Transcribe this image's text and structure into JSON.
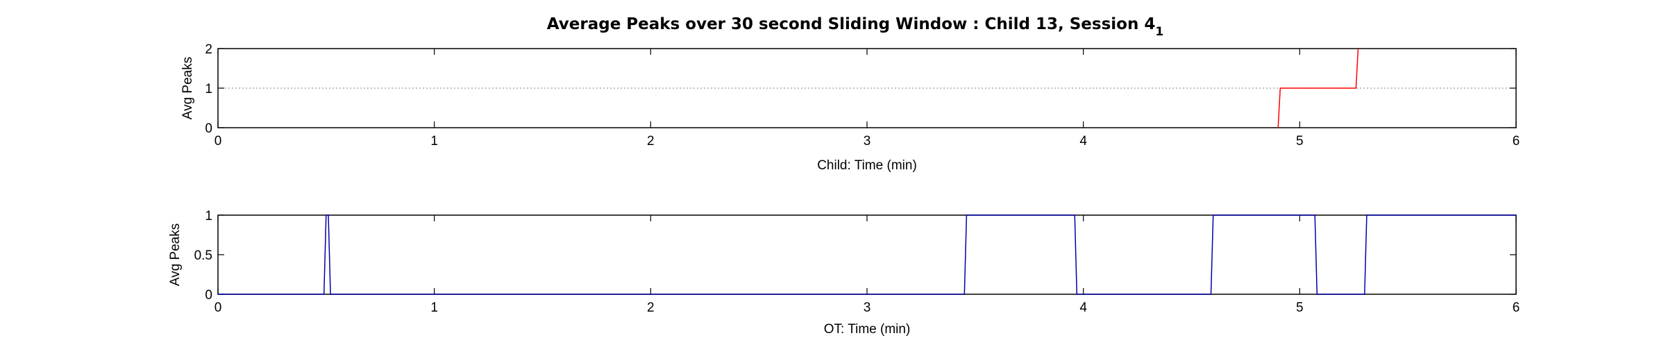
{
  "figure": {
    "title": "Average Peaks over 30 second Sliding Window : Child 13, Session 4",
    "title_subscript": "1"
  },
  "chart_data": [
    {
      "type": "line",
      "title": "",
      "xlabel": "Child: Time (min)",
      "ylabel": "Avg Peaks",
      "xlim": [
        0,
        6
      ],
      "ylim": [
        0,
        2
      ],
      "xticks": [
        0,
        1,
        2,
        3,
        4,
        5,
        6
      ],
      "yticks": [
        0,
        1,
        2
      ],
      "grid": false,
      "reference_line": 1,
      "series": [
        {
          "color": "#ff0000",
          "x": [
            4.9,
            4.91,
            5.26,
            5.27
          ],
          "y": [
            0,
            1,
            1,
            2
          ]
        }
      ]
    },
    {
      "type": "line",
      "title": "",
      "xlabel": "OT: Time (min)",
      "ylabel": "Avg Peaks",
      "xlim": [
        0,
        6
      ],
      "ylim": [
        0,
        1
      ],
      "xticks": [
        0,
        1,
        2,
        3,
        4,
        5,
        6
      ],
      "yticks": [
        0,
        0.5,
        1
      ],
      "grid": false,
      "series": [
        {
          "color": "#0000aa",
          "x": [
            0,
            0.49,
            0.5,
            0.51,
            0.52,
            3.45,
            3.46,
            3.96,
            3.97,
            4.59,
            4.6,
            5.07,
            5.08,
            5.3,
            5.31,
            6
          ],
          "y": [
            0,
            0,
            1,
            1,
            0,
            0,
            1,
            1,
            0,
            0,
            1,
            1,
            0,
            0,
            1,
            1
          ]
        }
      ]
    }
  ]
}
